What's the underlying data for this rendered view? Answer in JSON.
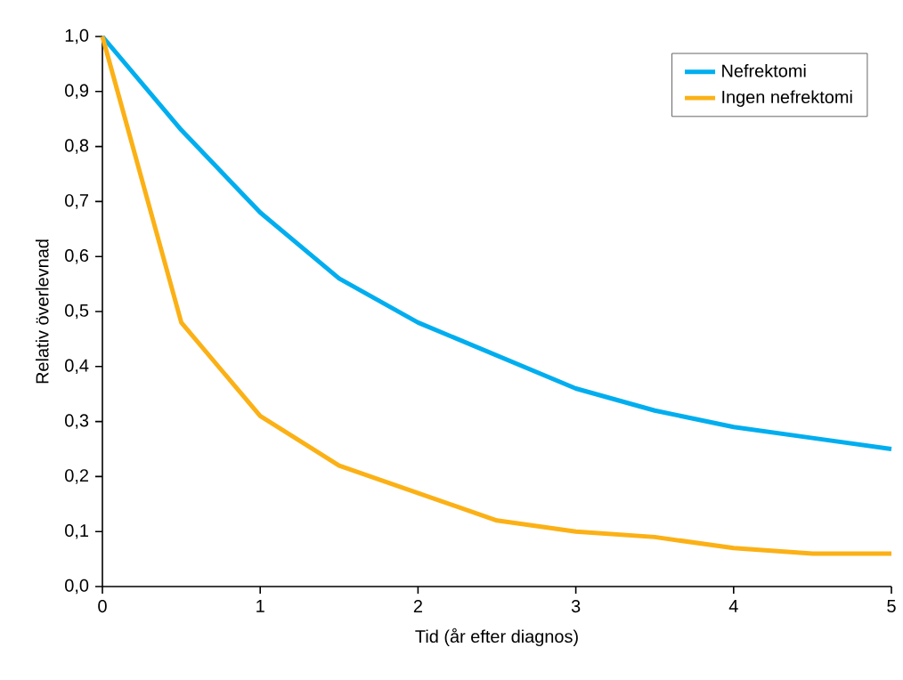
{
  "chart_data": {
    "type": "line",
    "xlabel": "Tid (år efter diagnos)",
    "ylabel": "Relativ överlevnad",
    "x": [
      0,
      0.5,
      1,
      1.5,
      2,
      2.5,
      3,
      3.5,
      4,
      4.5,
      5
    ],
    "series": [
      {
        "name": "Nefrektomi",
        "color": "#00aeef",
        "values": [
          1.0,
          0.83,
          0.68,
          0.56,
          0.48,
          0.42,
          0.36,
          0.32,
          0.29,
          0.27,
          0.25
        ]
      },
      {
        "name": "Ingen nefrektomi",
        "color": "#fbb116",
        "values": [
          1.0,
          0.48,
          0.31,
          0.22,
          0.17,
          0.12,
          0.1,
          0.09,
          0.07,
          0.06,
          0.06
        ]
      }
    ],
    "xlim": [
      0,
      5
    ],
    "ylim": [
      0,
      1
    ],
    "xticks": [
      0,
      1,
      2,
      3,
      4,
      5
    ],
    "yticks": [
      {
        "value": 0,
        "label": "0,0"
      },
      {
        "value": 0.1,
        "label": "0,1"
      },
      {
        "value": 0.2,
        "label": "0,2"
      },
      {
        "value": 0.3,
        "label": "0,3"
      },
      {
        "value": 0.4,
        "label": "0,4"
      },
      {
        "value": 0.5,
        "label": "0,5"
      },
      {
        "value": 0.6,
        "label": "0,6"
      },
      {
        "value": 0.7,
        "label": "0,7"
      },
      {
        "value": 0.8,
        "label": "0,8"
      },
      {
        "value": 0.9,
        "label": "0,9"
      },
      {
        "value": 1.0,
        "label": "1,0"
      }
    ],
    "legend": "top right",
    "grid": false,
    "marker": "none",
    "line_style": "solid"
  }
}
